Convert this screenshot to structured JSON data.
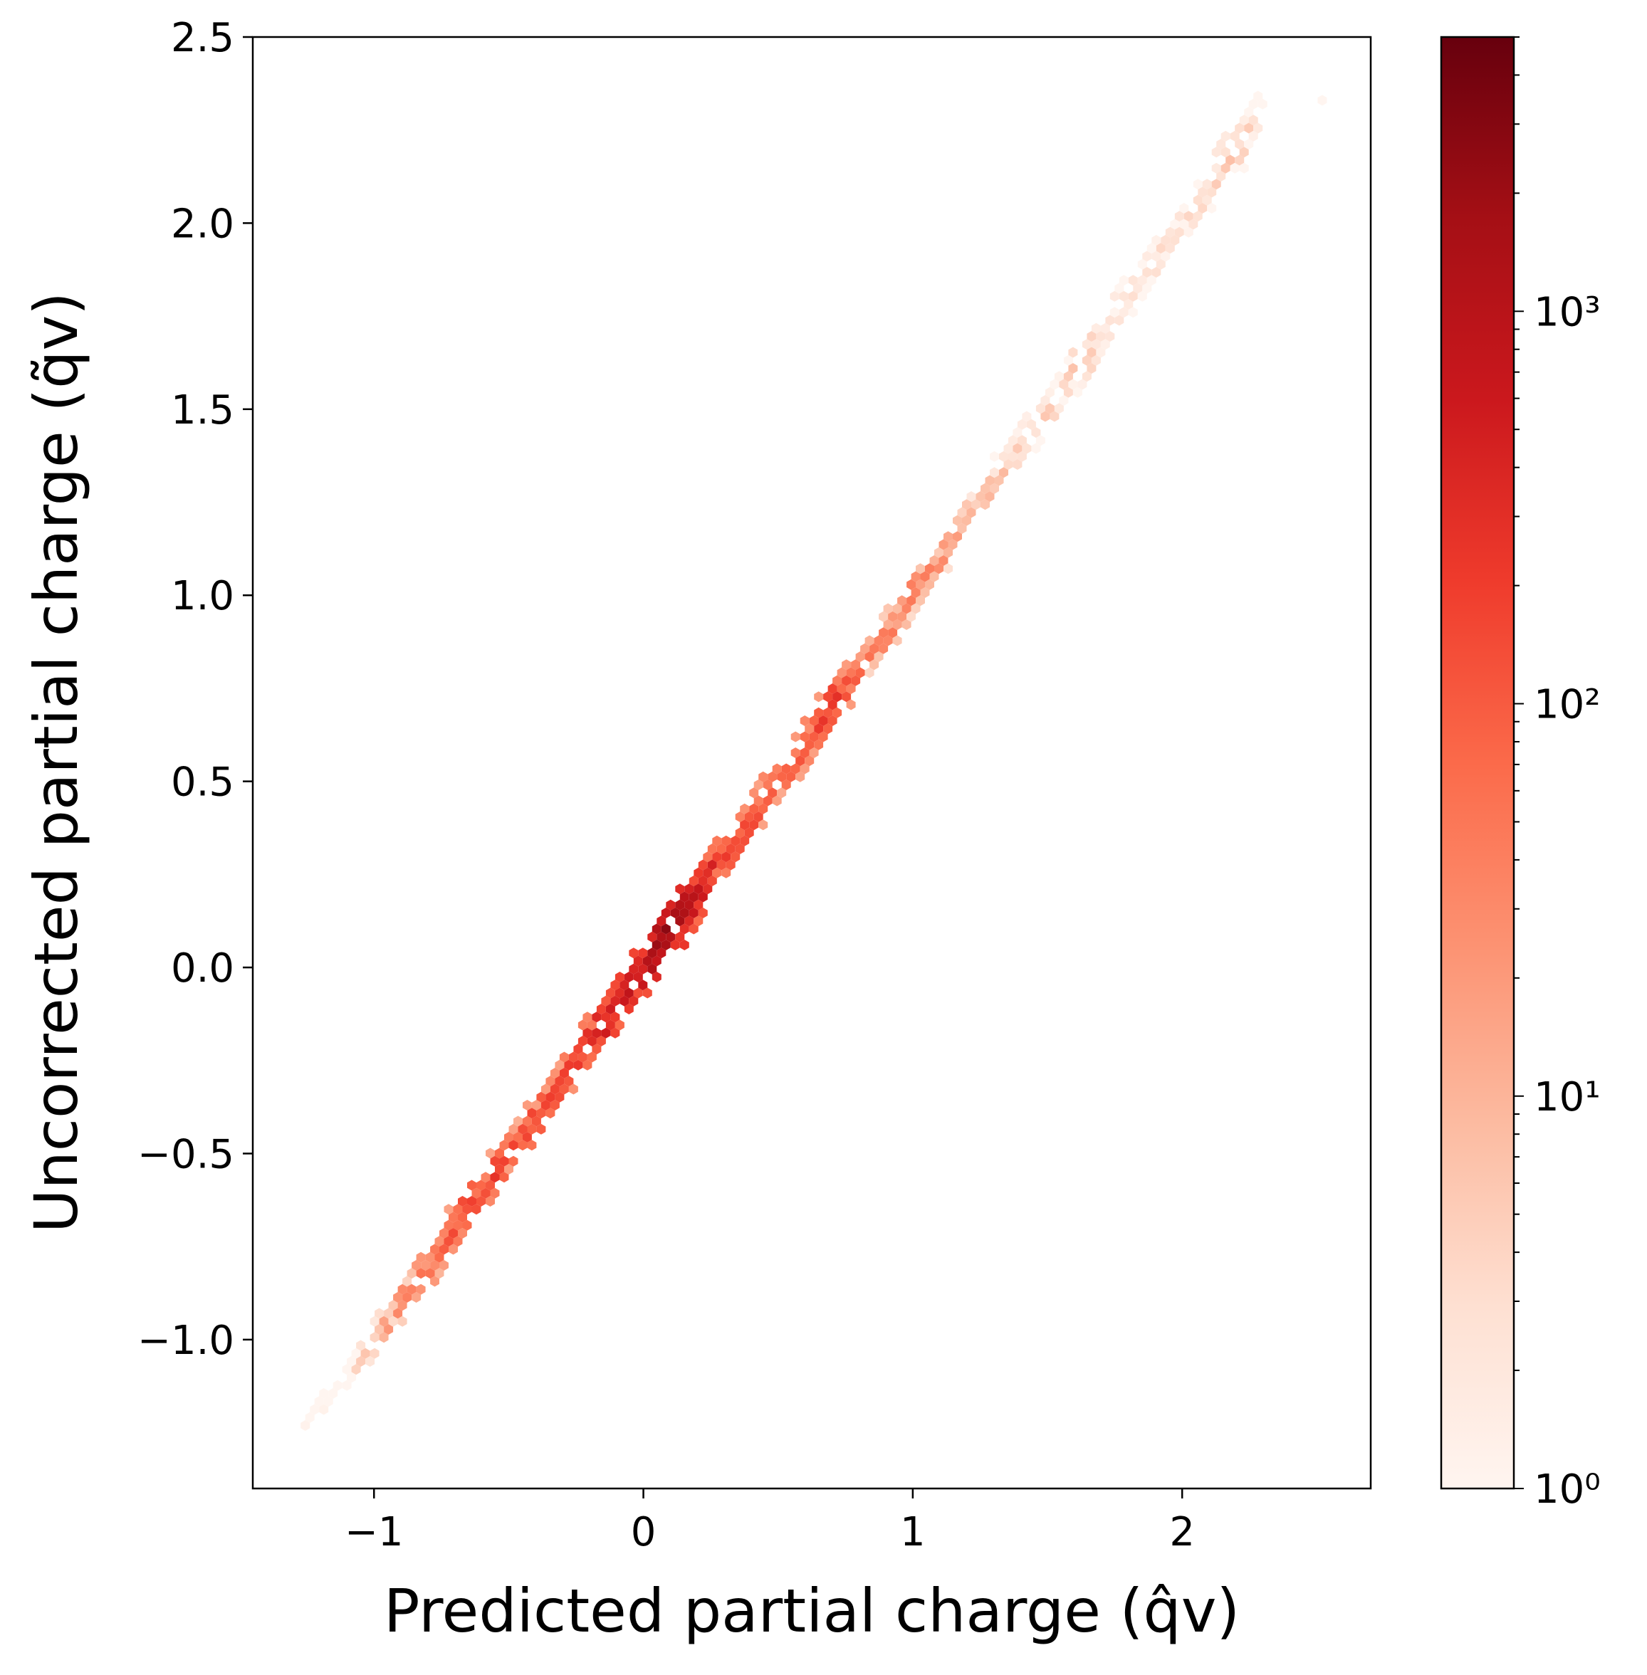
{
  "chart_data": {
    "type": "hexbin",
    "xlabel": "Predicted partial charge (q̂v)",
    "ylabel": "Uncorrected partial charge (q̃v)",
    "xlim": [
      -1.45,
      2.7
    ],
    "ylim": [
      -1.4,
      2.5
    ],
    "x_ticks": [
      -1,
      0,
      1,
      2
    ],
    "x_tick_labels": [
      "−1",
      "0",
      "1",
      "2"
    ],
    "y_ticks": [
      -1.0,
      -0.5,
      0.0,
      0.5,
      1.0,
      1.5,
      2.0,
      2.5
    ],
    "y_tick_labels": [
      "−1.0",
      "−0.5",
      "0.0",
      "0.5",
      "1.0",
      "1.5",
      "2.0",
      "2.5"
    ],
    "colorbar": {
      "scale": "log",
      "colormap": "Reds",
      "range": [
        1,
        5000
      ],
      "ticks": [
        1,
        10,
        100,
        1000
      ],
      "tick_labels": [
        "10⁰",
        "10¹",
        "10²",
        "10³"
      ]
    },
    "density_ridge": [
      {
        "x": -1.24,
        "y": -1.22,
        "count": 1
      },
      {
        "x": -1.15,
        "y": -1.13,
        "count": 1
      },
      {
        "x": -1.05,
        "y": -1.05,
        "count": 5
      },
      {
        "x": -1.0,
        "y": -1.0,
        "count": 20
      },
      {
        "x": -0.9,
        "y": -0.9,
        "count": 40
      },
      {
        "x": -0.8,
        "y": -0.8,
        "count": 80
      },
      {
        "x": -0.7,
        "y": -0.7,
        "count": 150
      },
      {
        "x": -0.6,
        "y": -0.6,
        "count": 250
      },
      {
        "x": -0.5,
        "y": -0.5,
        "count": 200
      },
      {
        "x": -0.4,
        "y": -0.4,
        "count": 150
      },
      {
        "x": -0.3,
        "y": -0.3,
        "count": 200
      },
      {
        "x": -0.2,
        "y": -0.2,
        "count": 400
      },
      {
        "x": -0.1,
        "y": -0.1,
        "count": 800
      },
      {
        "x": 0.0,
        "y": 0.0,
        "count": 1200
      },
      {
        "x": 0.1,
        "y": 0.1,
        "count": 3000
      },
      {
        "x": 0.2,
        "y": 0.2,
        "count": 700
      },
      {
        "x": 0.3,
        "y": 0.3,
        "count": 250
      },
      {
        "x": 0.4,
        "y": 0.4,
        "count": 150
      },
      {
        "x": 0.5,
        "y": 0.5,
        "count": 120
      },
      {
        "x": 0.6,
        "y": 0.6,
        "count": 150
      },
      {
        "x": 0.7,
        "y": 0.7,
        "count": 300
      },
      {
        "x": 0.8,
        "y": 0.8,
        "count": 80
      },
      {
        "x": 0.9,
        "y": 0.9,
        "count": 40
      },
      {
        "x": 1.0,
        "y": 1.0,
        "count": 50
      },
      {
        "x": 1.1,
        "y": 1.1,
        "count": 40
      },
      {
        "x": 1.2,
        "y": 1.2,
        "count": 15
      },
      {
        "x": 1.3,
        "y": 1.3,
        "count": 8
      },
      {
        "x": 1.4,
        "y": 1.4,
        "count": 5
      },
      {
        "x": 1.5,
        "y": 1.5,
        "count": 6
      },
      {
        "x": 1.6,
        "y": 1.6,
        "count": 8
      },
      {
        "x": 1.7,
        "y": 1.7,
        "count": 4
      },
      {
        "x": 1.8,
        "y": 1.8,
        "count": 3
      },
      {
        "x": 1.9,
        "y": 1.9,
        "count": 3
      },
      {
        "x": 2.0,
        "y": 2.0,
        "count": 3
      },
      {
        "x": 2.1,
        "y": 2.1,
        "count": 6
      },
      {
        "x": 2.2,
        "y": 2.2,
        "count": 8
      },
      {
        "x": 2.27,
        "y": 2.28,
        "count": 5
      },
      {
        "x": 2.52,
        "y": 2.33,
        "count": 1
      }
    ]
  }
}
